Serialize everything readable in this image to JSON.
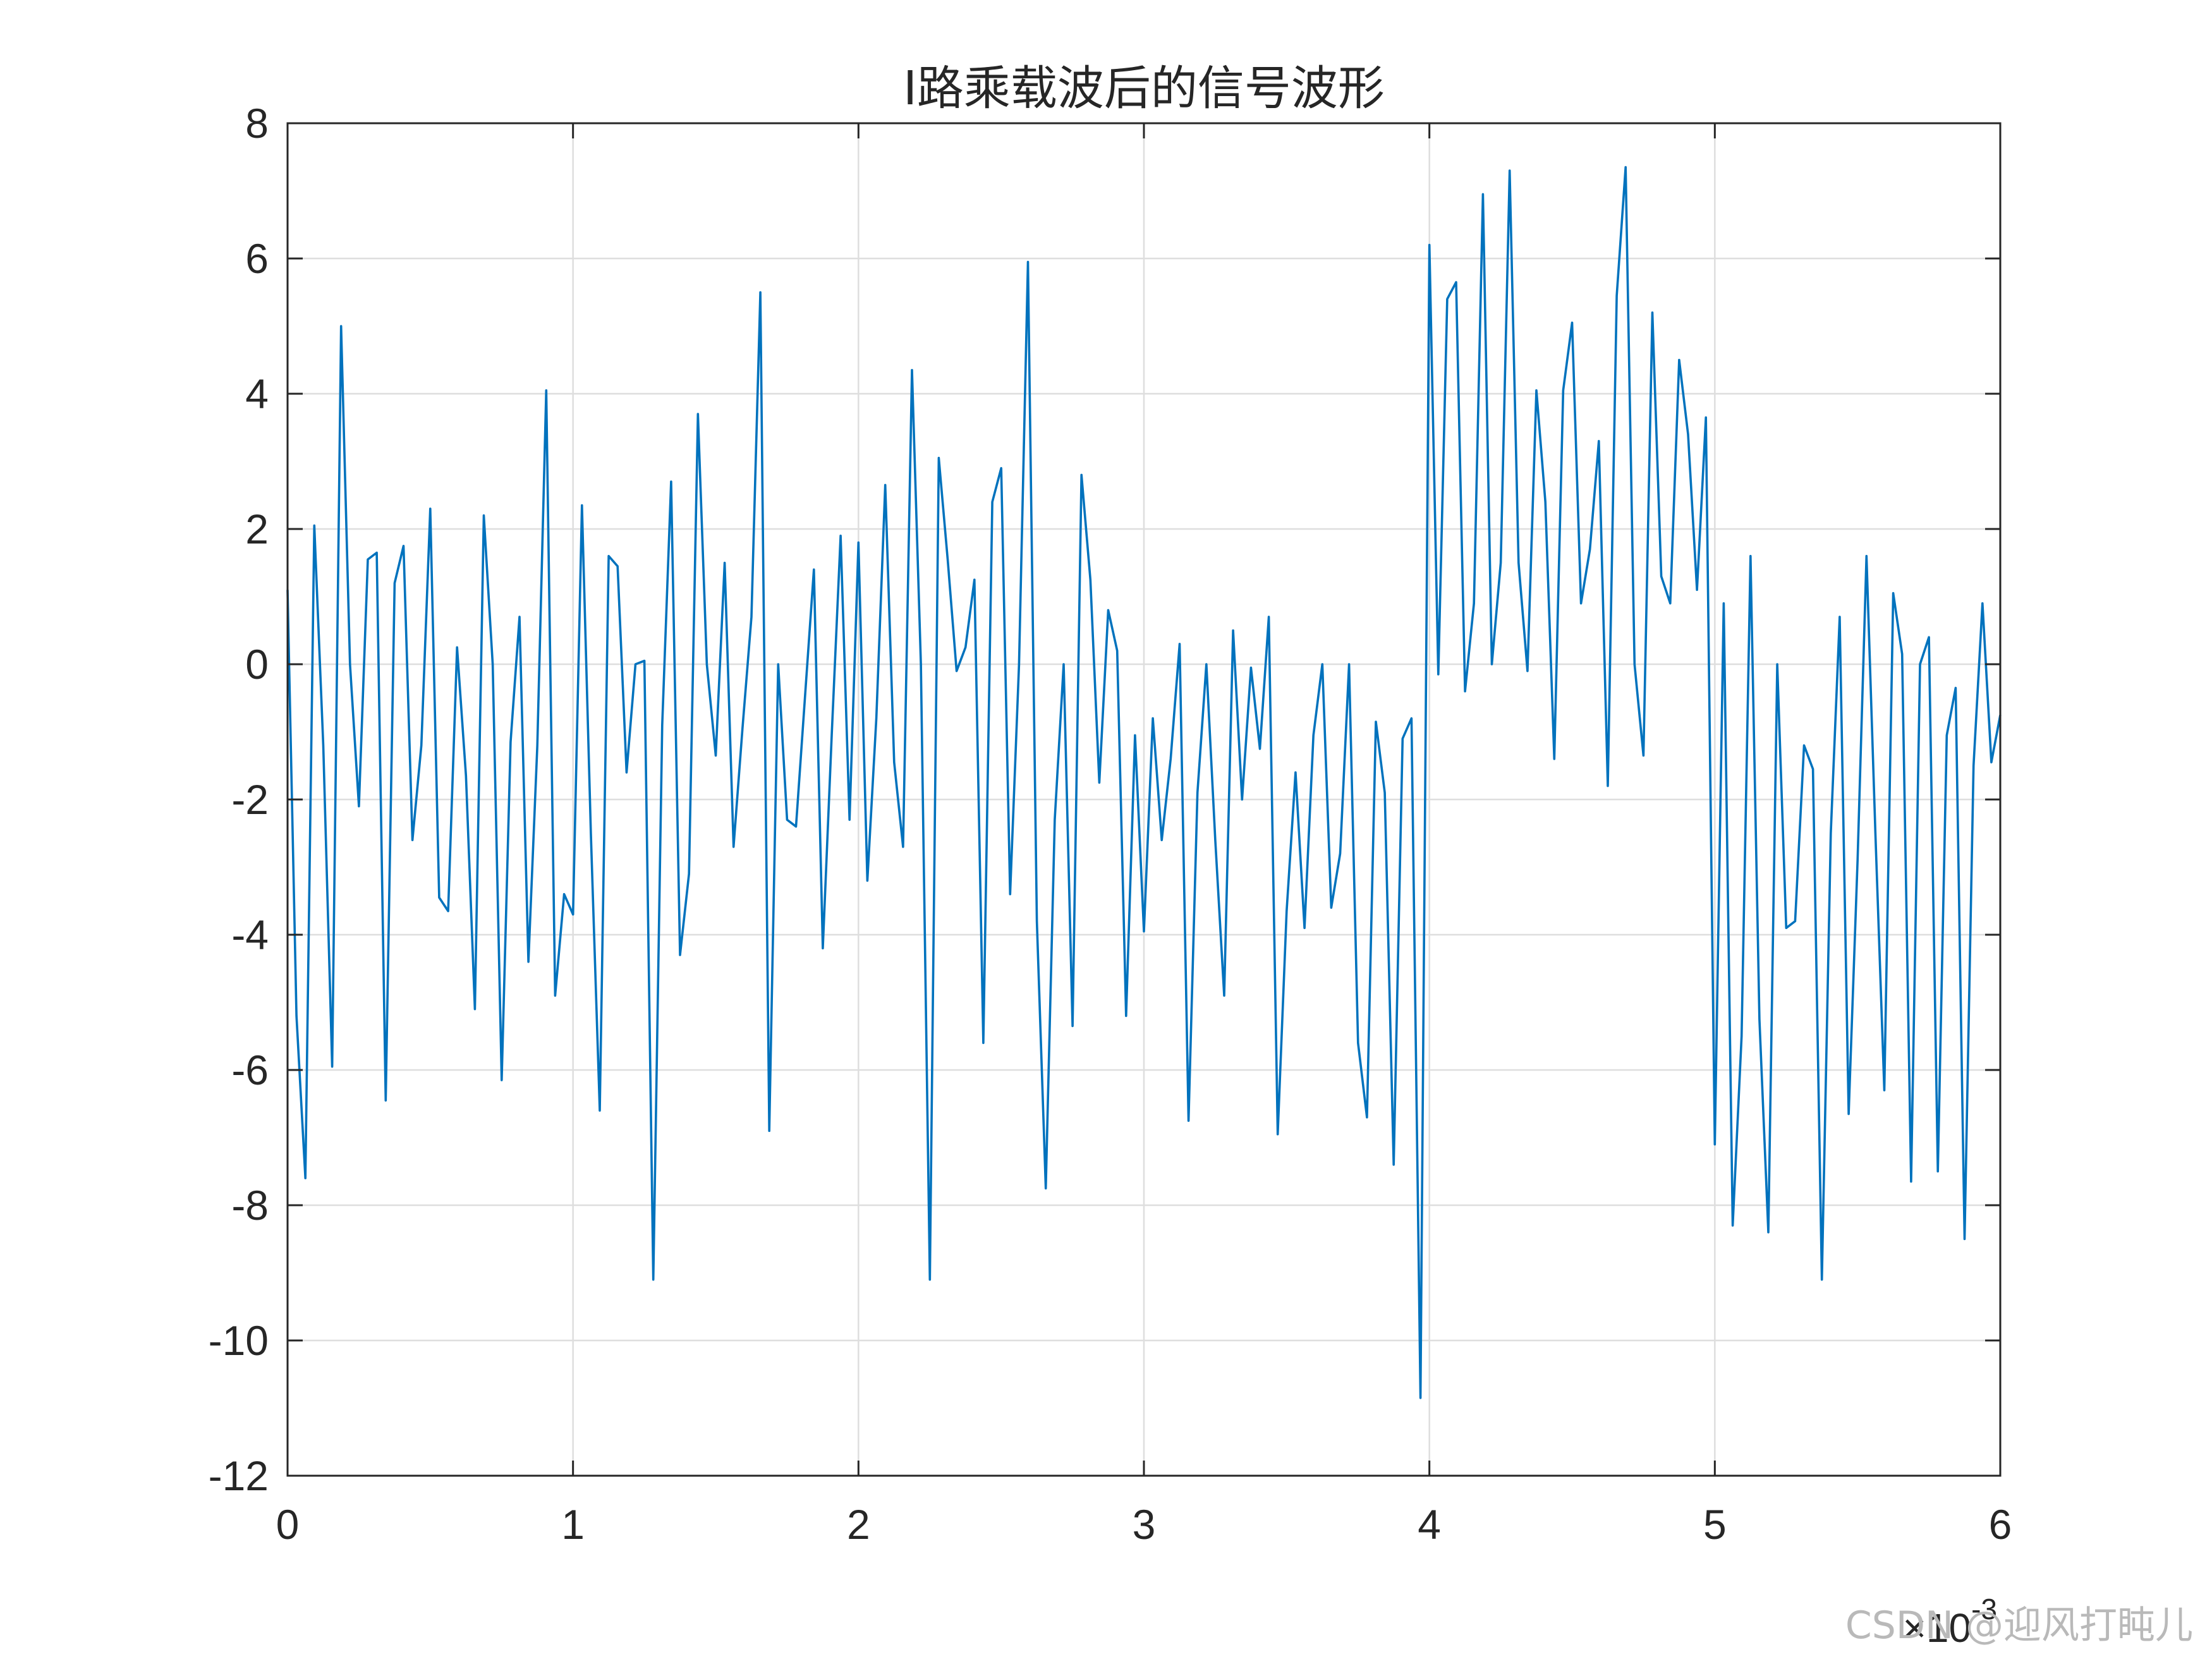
{
  "chart_data": {
    "type": "line",
    "title": "I路乘载波后的信号波形",
    "xlabel": "",
    "ylabel": "",
    "x_multiplier_label": "×10",
    "x_multiplier_exponent": "-3",
    "xlim": [
      0,
      6
    ],
    "ylim": [
      -12,
      8
    ],
    "x_ticks": [
      0,
      1,
      2,
      3,
      4,
      5,
      6
    ],
    "x_tick_labels": [
      "0",
      "1",
      "2",
      "3",
      "4",
      "5",
      "6"
    ],
    "y_ticks": [
      -12,
      -10,
      -8,
      -6,
      -4,
      -2,
      0,
      2,
      4,
      6,
      8
    ],
    "y_tick_labels": [
      "-12",
      "-10",
      "-8",
      "-6",
      "-4",
      "-2",
      "0",
      "2",
      "4",
      "6",
      "8"
    ],
    "grid": true,
    "line_color": "#0072BD",
    "axis_color": "#262626",
    "grid_color": "#dedede",
    "series": [
      {
        "x_start": 0,
        "x_step": 0.03125,
        "values": [
          1.1,
          -5.2,
          -7.6,
          2.05,
          -1.2,
          -5.95,
          5.0,
          0,
          -2.1,
          1.55,
          1.65,
          -6.45,
          1.2,
          1.75,
          -2.6,
          -1.2,
          2.3,
          -3.45,
          -3.65,
          0.25,
          -1.65,
          -5.1,
          2.2,
          0,
          -6.15,
          -1.15,
          0.7,
          -4.4,
          -1.2,
          4.05,
          -4.9,
          -3.4,
          -3.7,
          2.35,
          -2.5,
          -6.6,
          1.6,
          1.45,
          -1.6,
          0,
          0.05,
          -9.1,
          -0.9,
          2.7,
          -4.3,
          -3.1,
          3.7,
          0,
          -1.35,
          1.5,
          -2.7,
          -0.95,
          0.7,
          5.5,
          -6.9,
          0,
          -2.3,
          -2.4,
          -0.5,
          1.4,
          -4.2,
          -1.05,
          1.9,
          -2.3,
          1.8,
          -3.2,
          -0.8,
          2.65,
          -1.45,
          -2.7,
          4.35,
          0,
          -9.1,
          3.05,
          1.55,
          -0.1,
          0.25,
          1.25,
          -5.6,
          2.4,
          2.9,
          -3.4,
          0,
          5.95,
          -3.8,
          -7.75,
          -2.3,
          0,
          -5.35,
          2.8,
          1.25,
          -1.75,
          0.8,
          0.2,
          -5.2,
          -1.05,
          -3.95,
          -0.8,
          -2.6,
          -1.4,
          0.3,
          -6.75,
          -1.9,
          0,
          -2.6,
          -4.9,
          0.5,
          -2,
          -0.05,
          -1.25,
          0.7,
          -6.95,
          -3.65,
          -1.6,
          -3.9,
          -1.05,
          0,
          -3.6,
          -2.8,
          0,
          -5.6,
          -6.7,
          -0.85,
          -1.9,
          -7.4,
          -1.1,
          -0.8,
          -10.85,
          6.2,
          -0.15,
          5.4,
          5.65,
          -0.4,
          0.9,
          6.95,
          0,
          1.5,
          7.3,
          1.5,
          -0.1,
          4.05,
          2.4,
          -1.4,
          4.05,
          5.05,
          0.9,
          1.7,
          3.3,
          -1.8,
          5.45,
          7.35,
          0,
          -1.35,
          5.2,
          1.3,
          0.9,
          4.5,
          3.4,
          1.1,
          3.65,
          -7.1,
          0.9,
          -8.3,
          -5.5,
          1.6,
          -5.25,
          -8.4,
          0,
          -3.9,
          -3.8,
          -1.2,
          -1.55,
          -9.1,
          -2.5,
          0.7,
          -6.65,
          -2.9,
          1.6,
          -2.5,
          -6.3,
          1.05,
          0.15,
          -7.65,
          0,
          0.4,
          -7.5,
          -1.05,
          -0.35,
          -8.5,
          -1.5,
          0.9,
          -1.45,
          -0.75
        ]
      }
    ]
  },
  "watermark": "CSDN @迎风打盹儿"
}
